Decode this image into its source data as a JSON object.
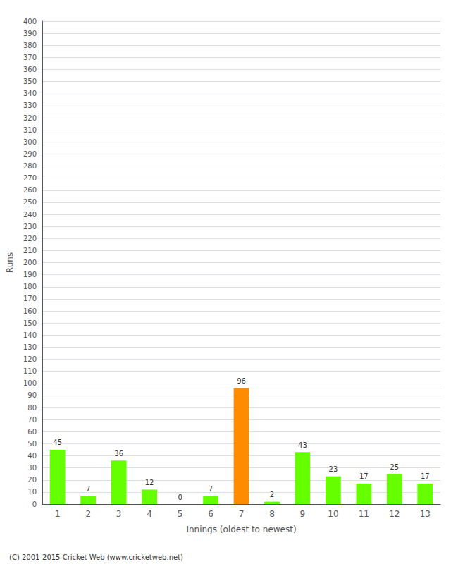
{
  "chart_data": {
    "type": "bar",
    "categories": [
      "1",
      "2",
      "3",
      "4",
      "5",
      "6",
      "7",
      "8",
      "9",
      "10",
      "11",
      "12",
      "13"
    ],
    "values": [
      45,
      7,
      36,
      12,
      0,
      7,
      96,
      2,
      43,
      23,
      17,
      25,
      17
    ],
    "colors": [
      "#66ff00",
      "#66ff00",
      "#66ff00",
      "#66ff00",
      "#66ff00",
      "#66ff00",
      "#ff8c00",
      "#66ff00",
      "#66ff00",
      "#66ff00",
      "#66ff00",
      "#66ff00",
      "#66ff00"
    ],
    "xlabel": "Innings (oldest to newest)",
    "ylabel": "Runs",
    "ylim": [
      0,
      400
    ],
    "yticks": [
      0,
      10,
      20,
      30,
      40,
      50,
      60,
      70,
      80,
      90,
      100,
      110,
      120,
      130,
      140,
      150,
      160,
      170,
      180,
      190,
      200,
      210,
      220,
      230,
      240,
      250,
      260,
      270,
      280,
      290,
      300,
      310,
      320,
      330,
      340,
      350,
      360,
      370,
      380,
      390,
      400
    ],
    "grid": true,
    "data_labels": true,
    "annotations": [
      "(C) 2001-2015 Cricket Web (www.cricketweb.net)"
    ]
  }
}
